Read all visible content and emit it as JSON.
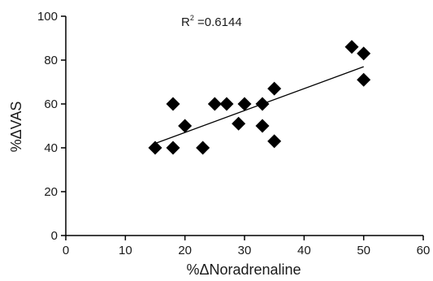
{
  "chart_data": {
    "type": "scatter",
    "xlabel": "%ΔNoradrenaline",
    "ylabel": "%ΔVAS",
    "xlim": [
      0,
      60
    ],
    "ylim": [
      0,
      100
    ],
    "xticks": [
      0,
      10,
      20,
      30,
      40,
      50,
      60
    ],
    "yticks": [
      0,
      20,
      40,
      60,
      80,
      100
    ],
    "grid": false,
    "marker": "diamond",
    "marker_color": "#000000",
    "points": [
      {
        "x": 15,
        "y": 40
      },
      {
        "x": 18,
        "y": 40
      },
      {
        "x": 18,
        "y": 60
      },
      {
        "x": 20,
        "y": 50
      },
      {
        "x": 23,
        "y": 40
      },
      {
        "x": 25,
        "y": 60
      },
      {
        "x": 27,
        "y": 60
      },
      {
        "x": 29,
        "y": 51
      },
      {
        "x": 30,
        "y": 60
      },
      {
        "x": 33,
        "y": 50
      },
      {
        "x": 33,
        "y": 60
      },
      {
        "x": 35,
        "y": 43
      },
      {
        "x": 35,
        "y": 67
      },
      {
        "x": 48,
        "y": 86
      },
      {
        "x": 50,
        "y": 83
      },
      {
        "x": 50,
        "y": 71
      }
    ],
    "trendline": {
      "type": "linear",
      "x_start": 15,
      "y_start": 42,
      "x_end": 50,
      "y_end": 77,
      "color": "#000000"
    },
    "annotation": {
      "r_label": "R",
      "r_superscript": "2",
      "r_value": " =0.6144"
    }
  }
}
